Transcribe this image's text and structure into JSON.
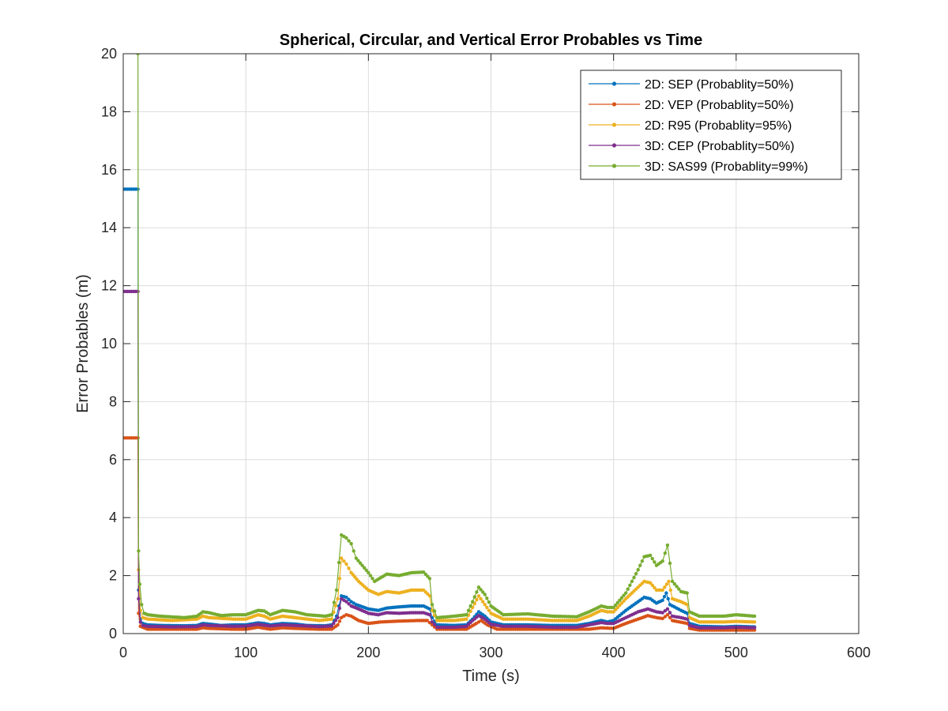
{
  "chart_data": {
    "type": "line",
    "title": "Spherical, Circular, and Vertical Error Probables vs Time",
    "xlabel": "Time (s)",
    "ylabel": "Error Probables (m)",
    "xlim": [
      0,
      600
    ],
    "ylim": [
      0,
      20
    ],
    "xticks": [
      "0",
      "100",
      "200",
      "300",
      "400",
      "500",
      "600"
    ],
    "yticks": [
      "0",
      "2",
      "4",
      "6",
      "8",
      "10",
      "12",
      "14",
      "16",
      "18",
      "20"
    ],
    "grid": true,
    "legend_position": "top-right",
    "markers": "dot",
    "series": [
      {
        "name": "2D: SEP (Probablity=50%)",
        "color": "#0072BD",
        "points": [
          [
            0,
            15.33
          ],
          [
            12,
            15.33
          ],
          [
            12.5,
            1.5
          ],
          [
            14,
            0.5
          ],
          [
            16,
            0.35
          ],
          [
            20,
            0.3
          ],
          [
            30,
            0.28
          ],
          [
            50,
            0.27
          ],
          [
            60,
            0.28
          ],
          [
            65,
            0.35
          ],
          [
            70,
            0.33
          ],
          [
            80,
            0.28
          ],
          [
            90,
            0.3
          ],
          [
            100,
            0.3
          ],
          [
            110,
            0.37
          ],
          [
            115,
            0.35
          ],
          [
            120,
            0.3
          ],
          [
            130,
            0.35
          ],
          [
            140,
            0.33
          ],
          [
            150,
            0.28
          ],
          [
            165,
            0.27
          ],
          [
            170,
            0.3
          ],
          [
            174,
            0.6
          ],
          [
            178,
            1.3
          ],
          [
            182,
            1.25
          ],
          [
            186,
            1.1
          ],
          [
            190,
            1.0
          ],
          [
            200,
            0.85
          ],
          [
            208,
            0.8
          ],
          [
            215,
            0.88
          ],
          [
            225,
            0.92
          ],
          [
            235,
            0.95
          ],
          [
            245,
            0.95
          ],
          [
            250,
            0.85
          ],
          [
            252,
            0.55
          ],
          [
            256,
            0.3
          ],
          [
            270,
            0.28
          ],
          [
            280,
            0.3
          ],
          [
            285,
            0.5
          ],
          [
            290,
            0.75
          ],
          [
            295,
            0.6
          ],
          [
            300,
            0.4
          ],
          [
            310,
            0.3
          ],
          [
            330,
            0.3
          ],
          [
            350,
            0.28
          ],
          [
            370,
            0.28
          ],
          [
            380,
            0.35
          ],
          [
            390,
            0.45
          ],
          [
            395,
            0.4
          ],
          [
            400,
            0.45
          ],
          [
            410,
            0.8
          ],
          [
            420,
            1.1
          ],
          [
            425,
            1.25
          ],
          [
            430,
            1.2
          ],
          [
            435,
            1.05
          ],
          [
            440,
            1.15
          ],
          [
            443,
            1.4
          ],
          [
            446,
            1.0
          ],
          [
            455,
            0.8
          ],
          [
            460,
            0.7
          ],
          [
            462,
            0.35
          ],
          [
            470,
            0.25
          ],
          [
            490,
            0.23
          ],
          [
            500,
            0.25
          ],
          [
            515,
            0.23
          ]
        ]
      },
      {
        "name": "2D: VEP (Probablity=50%)",
        "color": "#D95319",
        "points": [
          [
            0,
            6.75
          ],
          [
            12,
            6.75
          ],
          [
            12.5,
            0.7
          ],
          [
            14,
            0.25
          ],
          [
            20,
            0.15
          ],
          [
            40,
            0.15
          ],
          [
            60,
            0.15
          ],
          [
            65,
            0.2
          ],
          [
            70,
            0.18
          ],
          [
            90,
            0.15
          ],
          [
            100,
            0.15
          ],
          [
            110,
            0.22
          ],
          [
            120,
            0.15
          ],
          [
            130,
            0.2
          ],
          [
            140,
            0.18
          ],
          [
            160,
            0.15
          ],
          [
            170,
            0.15
          ],
          [
            175,
            0.3
          ],
          [
            178,
            0.55
          ],
          [
            182,
            0.65
          ],
          [
            186,
            0.6
          ],
          [
            192,
            0.45
          ],
          [
            200,
            0.35
          ],
          [
            210,
            0.4
          ],
          [
            225,
            0.43
          ],
          [
            240,
            0.45
          ],
          [
            248,
            0.45
          ],
          [
            252,
            0.3
          ],
          [
            256,
            0.15
          ],
          [
            280,
            0.15
          ],
          [
            288,
            0.35
          ],
          [
            292,
            0.45
          ],
          [
            297,
            0.3
          ],
          [
            305,
            0.15
          ],
          [
            340,
            0.15
          ],
          [
            380,
            0.15
          ],
          [
            390,
            0.2
          ],
          [
            400,
            0.18
          ],
          [
            410,
            0.35
          ],
          [
            420,
            0.5
          ],
          [
            428,
            0.62
          ],
          [
            435,
            0.55
          ],
          [
            440,
            0.52
          ],
          [
            444,
            0.65
          ],
          [
            448,
            0.45
          ],
          [
            460,
            0.35
          ],
          [
            462,
            0.18
          ],
          [
            470,
            0.12
          ],
          [
            515,
            0.12
          ]
        ]
      },
      {
        "name": "2D: R95 (Probablity=95%)",
        "color": "#EDB120",
        "points": [
          [
            12.5,
            2.2
          ],
          [
            14,
            0.8
          ],
          [
            16,
            0.55
          ],
          [
            20,
            0.5
          ],
          [
            40,
            0.45
          ],
          [
            60,
            0.5
          ],
          [
            65,
            0.6
          ],
          [
            70,
            0.55
          ],
          [
            90,
            0.5
          ],
          [
            100,
            0.5
          ],
          [
            110,
            0.65
          ],
          [
            115,
            0.6
          ],
          [
            120,
            0.5
          ],
          [
            130,
            0.6
          ],
          [
            140,
            0.55
          ],
          [
            160,
            0.45
          ],
          [
            170,
            0.5
          ],
          [
            175,
            1.2
          ],
          [
            178,
            2.6
          ],
          [
            182,
            2.4
          ],
          [
            186,
            2.1
          ],
          [
            192,
            1.8
          ],
          [
            200,
            1.5
          ],
          [
            208,
            1.35
          ],
          [
            215,
            1.45
          ],
          [
            225,
            1.4
          ],
          [
            235,
            1.5
          ],
          [
            245,
            1.5
          ],
          [
            250,
            1.3
          ],
          [
            252,
            0.8
          ],
          [
            256,
            0.45
          ],
          [
            270,
            0.45
          ],
          [
            280,
            0.5
          ],
          [
            285,
            0.9
          ],
          [
            290,
            1.3
          ],
          [
            295,
            1.0
          ],
          [
            300,
            0.7
          ],
          [
            310,
            0.5
          ],
          [
            330,
            0.5
          ],
          [
            350,
            0.45
          ],
          [
            370,
            0.45
          ],
          [
            380,
            0.6
          ],
          [
            390,
            0.8
          ],
          [
            395,
            0.75
          ],
          [
            400,
            0.75
          ],
          [
            410,
            1.2
          ],
          [
            420,
            1.6
          ],
          [
            425,
            1.8
          ],
          [
            430,
            1.75
          ],
          [
            435,
            1.5
          ],
          [
            440,
            1.5
          ],
          [
            445,
            1.8
          ],
          [
            448,
            1.2
          ],
          [
            455,
            1.1
          ],
          [
            460,
            1.0
          ],
          [
            462,
            0.55
          ],
          [
            470,
            0.4
          ],
          [
            490,
            0.4
          ],
          [
            500,
            0.42
          ],
          [
            515,
            0.4
          ]
        ]
      },
      {
        "name": "3D: CEP (Probablity=50%)",
        "color": "#7E2F8E",
        "points": [
          [
            0,
            11.8
          ],
          [
            12,
            11.8
          ],
          [
            12.5,
            1.2
          ],
          [
            14,
            0.4
          ],
          [
            16,
            0.28
          ],
          [
            20,
            0.25
          ],
          [
            40,
            0.23
          ],
          [
            60,
            0.24
          ],
          [
            65,
            0.3
          ],
          [
            70,
            0.28
          ],
          [
            90,
            0.25
          ],
          [
            100,
            0.26
          ],
          [
            110,
            0.32
          ],
          [
            120,
            0.26
          ],
          [
            130,
            0.3
          ],
          [
            140,
            0.28
          ],
          [
            160,
            0.24
          ],
          [
            170,
            0.26
          ],
          [
            175,
            0.55
          ],
          [
            178,
            1.2
          ],
          [
            182,
            1.1
          ],
          [
            186,
            0.95
          ],
          [
            192,
            0.85
          ],
          [
            200,
            0.7
          ],
          [
            208,
            0.65
          ],
          [
            215,
            0.72
          ],
          [
            225,
            0.7
          ],
          [
            235,
            0.72
          ],
          [
            245,
            0.72
          ],
          [
            250,
            0.65
          ],
          [
            252,
            0.4
          ],
          [
            256,
            0.22
          ],
          [
            270,
            0.22
          ],
          [
            280,
            0.25
          ],
          [
            285,
            0.45
          ],
          [
            290,
            0.62
          ],
          [
            295,
            0.5
          ],
          [
            300,
            0.32
          ],
          [
            310,
            0.25
          ],
          [
            330,
            0.25
          ],
          [
            350,
            0.22
          ],
          [
            370,
            0.22
          ],
          [
            380,
            0.3
          ],
          [
            390,
            0.38
          ],
          [
            395,
            0.35
          ],
          [
            400,
            0.35
          ],
          [
            410,
            0.55
          ],
          [
            420,
            0.75
          ],
          [
            428,
            0.85
          ],
          [
            435,
            0.75
          ],
          [
            440,
            0.72
          ],
          [
            444,
            0.85
          ],
          [
            448,
            0.6
          ],
          [
            455,
            0.55
          ],
          [
            460,
            0.5
          ],
          [
            462,
            0.28
          ],
          [
            470,
            0.2
          ],
          [
            490,
            0.2
          ],
          [
            500,
            0.22
          ],
          [
            515,
            0.2
          ]
        ]
      },
      {
        "name": "3D: SAS99 (Probablity=99%)",
        "color": "#77AC30",
        "points": [
          [
            12,
            20
          ],
          [
            12.5,
            2.85
          ],
          [
            13.5,
            1.7
          ],
          [
            15,
            1.0
          ],
          [
            17,
            0.7
          ],
          [
            20,
            0.65
          ],
          [
            30,
            0.6
          ],
          [
            50,
            0.55
          ],
          [
            60,
            0.6
          ],
          [
            65,
            0.75
          ],
          [
            70,
            0.72
          ],
          [
            80,
            0.62
          ],
          [
            90,
            0.65
          ],
          [
            100,
            0.65
          ],
          [
            110,
            0.8
          ],
          [
            115,
            0.78
          ],
          [
            120,
            0.65
          ],
          [
            130,
            0.8
          ],
          [
            140,
            0.75
          ],
          [
            150,
            0.65
          ],
          [
            165,
            0.6
          ],
          [
            170,
            0.65
          ],
          [
            174,
            1.5
          ],
          [
            178,
            3.4
          ],
          [
            182,
            3.3
          ],
          [
            186,
            3.1
          ],
          [
            190,
            2.6
          ],
          [
            200,
            2.1
          ],
          [
            205,
            1.8
          ],
          [
            215,
            2.05
          ],
          [
            225,
            2.0
          ],
          [
            235,
            2.1
          ],
          [
            245,
            2.12
          ],
          [
            250,
            1.9
          ],
          [
            252,
            1.0
          ],
          [
            256,
            0.55
          ],
          [
            270,
            0.6
          ],
          [
            280,
            0.65
          ],
          [
            285,
            1.1
          ],
          [
            290,
            1.6
          ],
          [
            295,
            1.35
          ],
          [
            300,
            0.95
          ],
          [
            310,
            0.65
          ],
          [
            330,
            0.68
          ],
          [
            350,
            0.6
          ],
          [
            370,
            0.58
          ],
          [
            380,
            0.75
          ],
          [
            390,
            0.95
          ],
          [
            395,
            0.9
          ],
          [
            400,
            0.9
          ],
          [
            410,
            1.4
          ],
          [
            420,
            2.2
          ],
          [
            425,
            2.65
          ],
          [
            430,
            2.7
          ],
          [
            435,
            2.35
          ],
          [
            440,
            2.5
          ],
          [
            444,
            3.05
          ],
          [
            448,
            1.8
          ],
          [
            455,
            1.45
          ],
          [
            460,
            1.4
          ],
          [
            462,
            0.75
          ],
          [
            470,
            0.6
          ],
          [
            490,
            0.6
          ],
          [
            500,
            0.65
          ],
          [
            515,
            0.6
          ]
        ]
      }
    ]
  }
}
